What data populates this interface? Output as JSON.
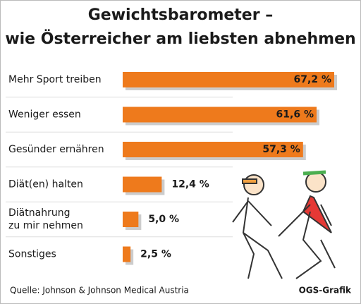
{
  "chart_data": {
    "type": "bar",
    "orientation": "horizontal",
    "title": "Gewichtsbarometer –\nwie Österreicher am liebsten abnehmen",
    "categories": [
      "Mehr Sport treiben",
      "Weniger essen",
      "Gesünder ernähren",
      "Diät(en) halten",
      "Diätnahrung\nzu mir nehmen",
      "Sonstiges"
    ],
    "values": [
      67.2,
      61.6,
      57.3,
      12.4,
      5.0,
      2.5
    ],
    "value_labels": [
      "67,2 %",
      "61,6 %",
      "57,3 %",
      "12,4 %",
      "5,0 %",
      "2,5 %"
    ],
    "color": "#ee7a1c",
    "source": "Quelle: Johnson & Johnson Medical Austria",
    "credit": "OGS-Grafik"
  }
}
